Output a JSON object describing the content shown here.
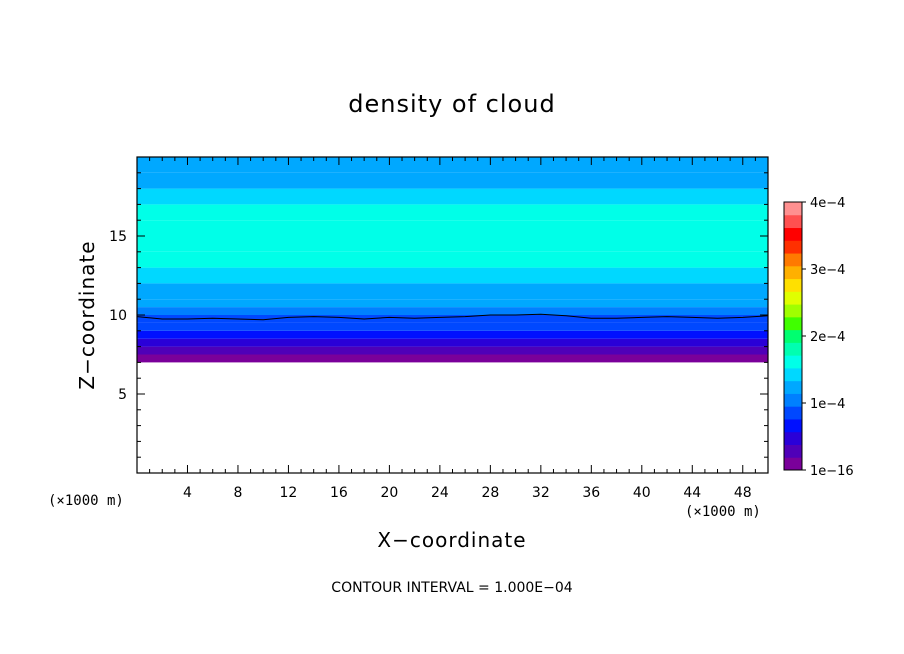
{
  "chart_data": {
    "type": "heatmap",
    "title": "density of cloud",
    "xlabel": "X−coordinate",
    "ylabel": "Z−coordinate",
    "x_unit": "(×1000 m)",
    "z_unit": "(×1000 m)",
    "xlim": [
      0,
      50
    ],
    "ylim": [
      0,
      20
    ],
    "x_ticks": [
      4,
      8,
      12,
      16,
      20,
      24,
      28,
      32,
      36,
      40,
      44,
      48
    ],
    "y_ticks": [
      5,
      10,
      15
    ],
    "x_tick_labels": [
      "4",
      "8",
      "12",
      "16",
      "20",
      "24",
      "28",
      "32",
      "36",
      "40",
      "44",
      "48"
    ],
    "y_tick_labels": [
      "5",
      "10",
      "15"
    ],
    "colorbar": {
      "range": [
        0,
        0.0004
      ],
      "tick_values": [
        0,
        0.0001,
        0.0002,
        0.0003,
        0.0004
      ],
      "tick_labels": [
        "1e−16",
        "1e−4",
        "2e−4",
        "3e−4",
        "4e−4"
      ],
      "colors": [
        "#7a009a",
        "#4f00b8",
        "#2a00d8",
        "#0010ff",
        "#0048ff",
        "#0080ff",
        "#00a8ff",
        "#00d8ff",
        "#00ffe8",
        "#00ffb0",
        "#00ff70",
        "#40ff00",
        "#a0ff00",
        "#e0ff00",
        "#ffe000",
        "#ffb000",
        "#ff7a00",
        "#ff3000",
        "#ff0000",
        "#ff5050",
        "#ff9090"
      ]
    },
    "profile": [
      {
        "z": 7.0,
        "value": 5e-06
      },
      {
        "z": 7.5,
        "value": 2e-05
      },
      {
        "z": 8.0,
        "value": 4e-05
      },
      {
        "z": 8.5,
        "value": 6e-05
      },
      {
        "z": 9.0,
        "value": 8e-05
      },
      {
        "z": 9.5,
        "value": 9.5e-05
      },
      {
        "z": 10.0,
        "value": 0.00011
      },
      {
        "z": 10.5,
        "value": 0.00012
      },
      {
        "z": 11.0,
        "value": 0.00013
      },
      {
        "z": 12.0,
        "value": 0.00014
      },
      {
        "z": 13.0,
        "value": 0.000155
      },
      {
        "z": 14.0,
        "value": 0.00016
      },
      {
        "z": 16.0,
        "value": 0.00016
      },
      {
        "z": 17.0,
        "value": 0.00015
      },
      {
        "z": 18.0,
        "value": 0.00013
      },
      {
        "z": 19.0,
        "value": 0.00012
      },
      {
        "z": 20.0,
        "value": 0.00011
      }
    ],
    "cloud_base_z": 7.0,
    "contour": {
      "level": 0.0001,
      "points": [
        {
          "x": 0,
          "z": 9.9
        },
        {
          "x": 2,
          "z": 9.75
        },
        {
          "x": 4,
          "z": 9.75
        },
        {
          "x": 6,
          "z": 9.8
        },
        {
          "x": 8,
          "z": 9.75
        },
        {
          "x": 10,
          "z": 9.7
        },
        {
          "x": 12,
          "z": 9.85
        },
        {
          "x": 14,
          "z": 9.9
        },
        {
          "x": 16,
          "z": 9.85
        },
        {
          "x": 18,
          "z": 9.75
        },
        {
          "x": 20,
          "z": 9.85
        },
        {
          "x": 22,
          "z": 9.8
        },
        {
          "x": 24,
          "z": 9.85
        },
        {
          "x": 26,
          "z": 9.9
        },
        {
          "x": 28,
          "z": 10.0
        },
        {
          "x": 30,
          "z": 10.0
        },
        {
          "x": 32,
          "z": 10.05
        },
        {
          "x": 34,
          "z": 9.95
        },
        {
          "x": 36,
          "z": 9.8
        },
        {
          "x": 38,
          "z": 9.8
        },
        {
          "x": 40,
          "z": 9.85
        },
        {
          "x": 42,
          "z": 9.9
        },
        {
          "x": 44,
          "z": 9.85
        },
        {
          "x": 46,
          "z": 9.8
        },
        {
          "x": 48,
          "z": 9.85
        },
        {
          "x": 50,
          "z": 9.95
        }
      ]
    },
    "footnote": "CONTOUR INTERVAL = 1.000E−04"
  }
}
